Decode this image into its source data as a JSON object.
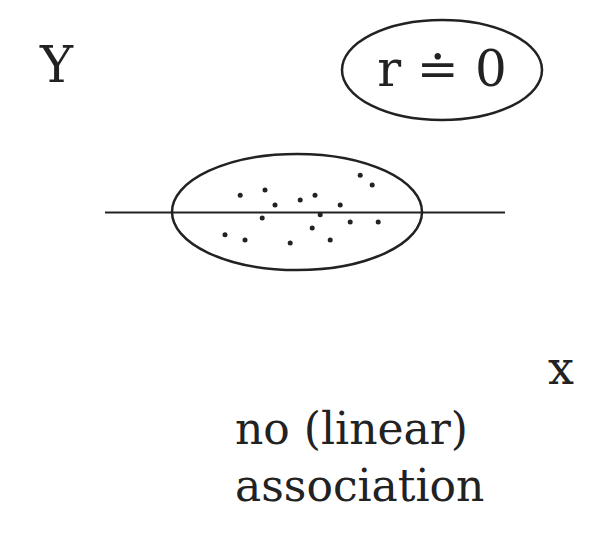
{
  "chart_data": {
    "type": "scatter",
    "x_label": "x",
    "y_label": "Y",
    "annotations": [
      "r ≐ 0",
      "no (linear) association"
    ],
    "x": [
      3.38,
      4.0,
      4.25,
      4.88,
      5.25,
      5.88,
      6.38,
      6.68,
      3.0,
      3.5,
      4.63,
      5.18,
      5.63,
      6.13,
      6.83,
      3.93,
      5.38
    ],
    "values": [
      5.34,
      5.52,
      5.0,
      5.17,
      5.34,
      5.0,
      6.03,
      5.69,
      3.97,
      3.79,
      3.69,
      4.21,
      3.79,
      4.41,
      4.41,
      4.55,
      4.66
    ],
    "xlim": [
      0,
      10
    ],
    "ylim": [
      0,
      10
    ],
    "tick_labels": false,
    "grid": false,
    "color": "#222222",
    "marker": "dot"
  }
}
